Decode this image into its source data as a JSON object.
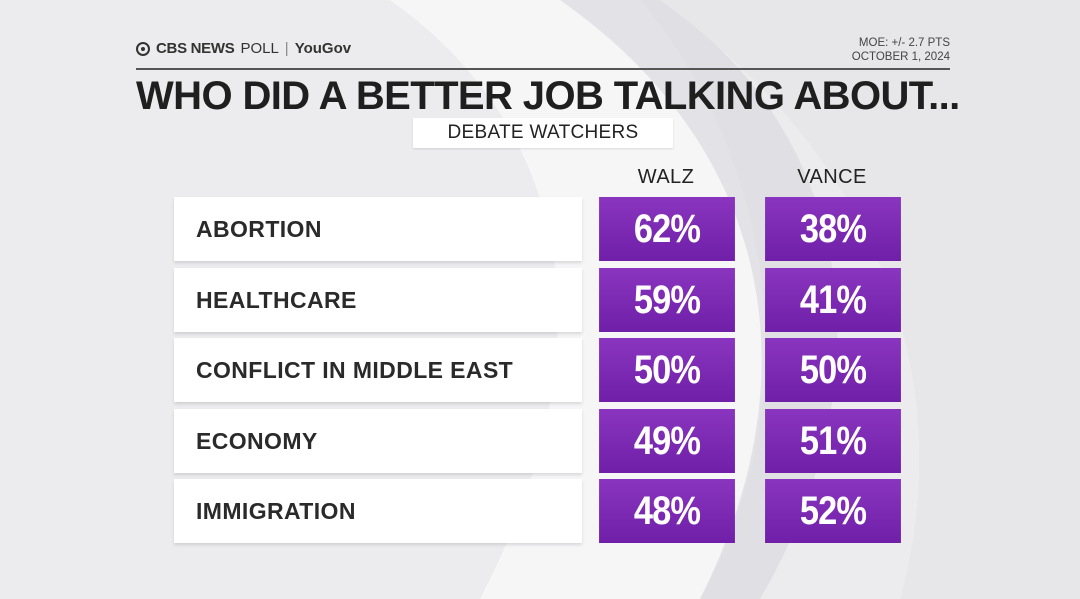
{
  "header": {
    "brand_cbs": "CBS NEWS",
    "brand_poll": "POLL",
    "brand_sep": "|",
    "brand_yougov": "YouGov",
    "moe": "MOE: +/- 2.7 PTS",
    "date": "OCTOBER 1, 2024"
  },
  "title": "WHO DID A BETTER JOB TALKING ABOUT...",
  "subtitle": "DEBATE WATCHERS",
  "colors": {
    "purple": "#7a28b3",
    "row_bg": "#ffffff",
    "title": "#1f1f1f"
  },
  "chart_data": {
    "type": "table",
    "title": "WHO DID A BETTER JOB TALKING ABOUT...",
    "subtitle": "DEBATE WATCHERS",
    "columns": [
      "WALZ",
      "VANCE"
    ],
    "rows": [
      {
        "label": "ABORTION",
        "walz": "62%",
        "vance": "38%"
      },
      {
        "label": "HEALTHCARE",
        "walz": "59%",
        "vance": "41%"
      },
      {
        "label": "CONFLICT IN MIDDLE EAST",
        "walz": "50%",
        "vance": "50%"
      },
      {
        "label": "ECONOMY",
        "walz": "49%",
        "vance": "51%"
      },
      {
        "label": "IMMIGRATION",
        "walz": "48%",
        "vance": "52%"
      }
    ]
  }
}
